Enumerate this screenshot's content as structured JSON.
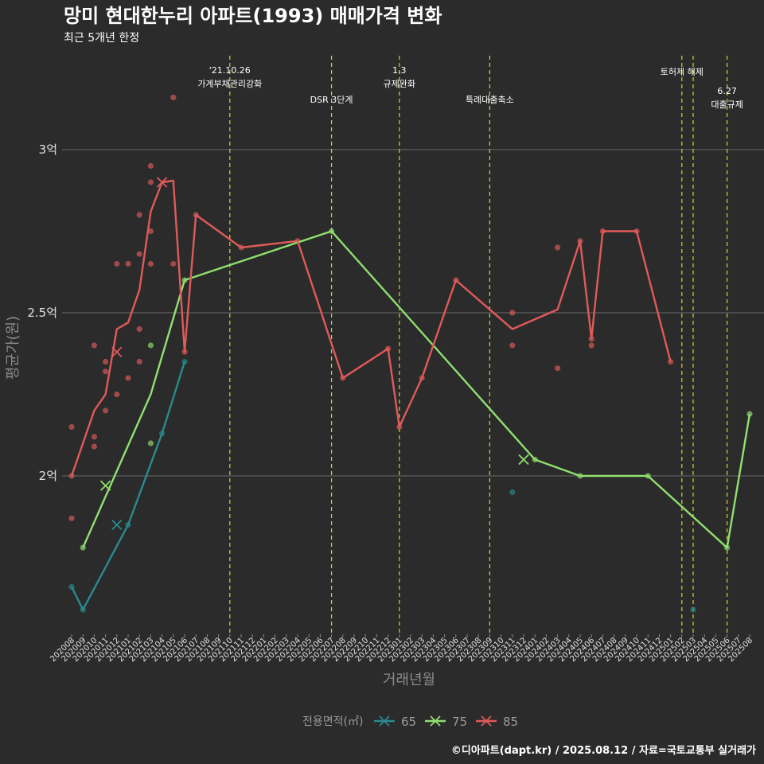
{
  "chart_data": {
    "type": "line",
    "title": "망미 현대한누리 아파트(1993) 매매가격 변화",
    "subtitle": "최근 5개년 한정",
    "xlabel": "거래년월",
    "ylabel": "평균가(원)",
    "caption": "©디아파트(dapt.kr) / 2025.08.12 / 자료=국토교통부 실거래가",
    "ylim": [
      1.55,
      3.15
    ],
    "y_ticks": [
      {
        "value": 2.0,
        "label": "2억"
      },
      {
        "value": 2.5,
        "label": "2.5억"
      },
      {
        "value": 3.0,
        "label": "3억"
      }
    ],
    "grid": true,
    "categories": [
      "202008",
      "202009",
      "202010",
      "202011",
      "202012",
      "202101",
      "202102",
      "202103",
      "202104",
      "202105",
      "202106",
      "202107",
      "202108",
      "202109",
      "202110",
      "202111",
      "202112",
      "202201",
      "202202",
      "202203",
      "202204",
      "202205",
      "202206",
      "202207",
      "202208",
      "202209",
      "202210",
      "202211",
      "202212",
      "202301",
      "202302",
      "202303",
      "202304",
      "202305",
      "202306",
      "202307",
      "202308",
      "202309",
      "202310",
      "202311",
      "202312",
      "202401",
      "202402",
      "202403",
      "202404",
      "202405",
      "202406",
      "202407",
      "202408",
      "202409",
      "202410",
      "202411",
      "202412",
      "202501",
      "202502",
      "202503",
      "202504",
      "202505",
      "202506",
      "202507",
      "202508"
    ],
    "legend": {
      "title": "전용면적(㎡)",
      "position": "bottom"
    },
    "series": [
      {
        "name": "65",
        "color": "#2a8a8e",
        "line": [
          [
            "202008",
            1.66
          ],
          [
            "202009",
            1.59
          ],
          [
            "202101",
            1.85
          ],
          [
            "202104",
            2.13
          ],
          [
            "202106",
            2.35
          ]
        ],
        "points": [
          [
            "202008",
            1.66
          ],
          [
            "202009",
            1.59
          ],
          [
            "202101",
            1.85
          ],
          [
            "202104",
            2.13
          ],
          [
            "202106",
            2.35
          ],
          [
            "202311",
            1.95
          ],
          [
            "202503",
            1.59
          ]
        ],
        "cross": [
          [
            "202012",
            1.85
          ]
        ]
      },
      {
        "name": "75",
        "color": "#90e070",
        "line": [
          [
            "202009",
            1.78
          ],
          [
            "202103",
            2.25
          ],
          [
            "202106",
            2.6
          ],
          [
            "202207",
            2.75
          ],
          [
            "202401",
            2.05
          ],
          [
            "202405",
            2.0
          ],
          [
            "202411",
            2.0
          ],
          [
            "202506",
            1.78
          ],
          [
            "202508",
            2.19
          ]
        ],
        "points": [
          [
            "202009",
            1.78
          ],
          [
            "202103",
            2.1
          ],
          [
            "202103",
            2.4
          ],
          [
            "202106",
            2.6
          ],
          [
            "202207",
            2.75
          ],
          [
            "202401",
            2.05
          ],
          [
            "202405",
            2.0
          ],
          [
            "202411",
            2.0
          ],
          [
            "202506",
            1.78
          ],
          [
            "202508",
            2.19
          ]
        ],
        "cross": [
          [
            "202011",
            1.97
          ],
          [
            "202312",
            2.05
          ]
        ]
      },
      {
        "name": "85",
        "color": "#e05a5a",
        "line": [
          [
            "202008",
            2.0
          ],
          [
            "202010",
            2.2
          ],
          [
            "202011",
            2.25
          ],
          [
            "202012",
            2.45
          ],
          [
            "202101",
            2.47
          ],
          [
            "202102",
            2.57
          ],
          [
            "202103",
            2.81
          ],
          [
            "202104",
            2.9
          ],
          [
            "202105",
            2.905
          ],
          [
            "202106",
            2.38
          ],
          [
            "202107",
            2.8
          ],
          [
            "202111",
            2.7
          ],
          [
            "202204",
            2.72
          ],
          [
            "202208",
            2.3
          ],
          [
            "202212",
            2.39
          ],
          [
            "202301",
            2.15
          ],
          [
            "202303",
            2.3
          ],
          [
            "202306",
            2.6
          ],
          [
            "202311",
            2.45
          ],
          [
            "202403",
            2.51
          ],
          [
            "202405",
            2.72
          ],
          [
            "202406",
            2.42
          ],
          [
            "202407",
            2.75
          ],
          [
            "202410",
            2.75
          ],
          [
            "202501",
            2.35
          ]
        ],
        "points": [
          [
            "202008",
            2.15
          ],
          [
            "202008",
            2.0
          ],
          [
            "202008",
            1.87
          ],
          [
            "202010",
            2.4
          ],
          [
            "202010",
            2.12
          ],
          [
            "202010",
            2.09
          ],
          [
            "202011",
            2.35
          ],
          [
            "202011",
            2.32
          ],
          [
            "202011",
            2.2
          ],
          [
            "202012",
            2.65
          ],
          [
            "202012",
            2.25
          ],
          [
            "202101",
            2.65
          ],
          [
            "202101",
            2.3
          ],
          [
            "202102",
            2.68
          ],
          [
            "202102",
            2.45
          ],
          [
            "202102",
            2.35
          ],
          [
            "202102",
            2.8
          ],
          [
            "202103",
            2.95
          ],
          [
            "202103",
            2.9
          ],
          [
            "202103",
            2.75
          ],
          [
            "202103",
            2.65
          ],
          [
            "202105",
            3.16
          ],
          [
            "202105",
            2.65
          ],
          [
            "202106",
            2.38
          ],
          [
            "202107",
            2.8
          ],
          [
            "202111",
            2.7
          ],
          [
            "202204",
            2.72
          ],
          [
            "202208",
            2.3
          ],
          [
            "202212",
            2.39
          ],
          [
            "202301",
            2.15
          ],
          [
            "202303",
            2.3
          ],
          [
            "202306",
            2.6
          ],
          [
            "202311",
            2.5
          ],
          [
            "202311",
            2.4
          ],
          [
            "202403",
            2.7
          ],
          [
            "202403",
            2.33
          ],
          [
            "202405",
            2.72
          ],
          [
            "202406",
            2.42
          ],
          [
            "202406",
            2.4
          ],
          [
            "202407",
            2.75
          ],
          [
            "202410",
            2.75
          ],
          [
            "202501",
            2.35
          ]
        ],
        "cross": [
          [
            "202012",
            2.38
          ],
          [
            "202104",
            2.9
          ]
        ]
      }
    ],
    "events": [
      {
        "month": "202110",
        "label": "'21.10.26\n가계부채관리강화",
        "label_row": 1
      },
      {
        "month": "202207",
        "label": "DSR 3단계",
        "label_row": 2
      },
      {
        "month": "202301",
        "label": "1.3\n규제완화",
        "label_row": 1
      },
      {
        "month": "202309",
        "label": "특례대출축소",
        "label_row": 2
      },
      {
        "month": "202502",
        "label": "토허제 해제",
        "label_row": 1
      },
      {
        "month": "202503",
        "label": "",
        "label_row": 1
      },
      {
        "month": "202506",
        "label": "6.27\n대출규제",
        "label_row": 3
      }
    ],
    "event_line_color": "#d4d42a",
    "grid_color": "#6a6a6a"
  }
}
